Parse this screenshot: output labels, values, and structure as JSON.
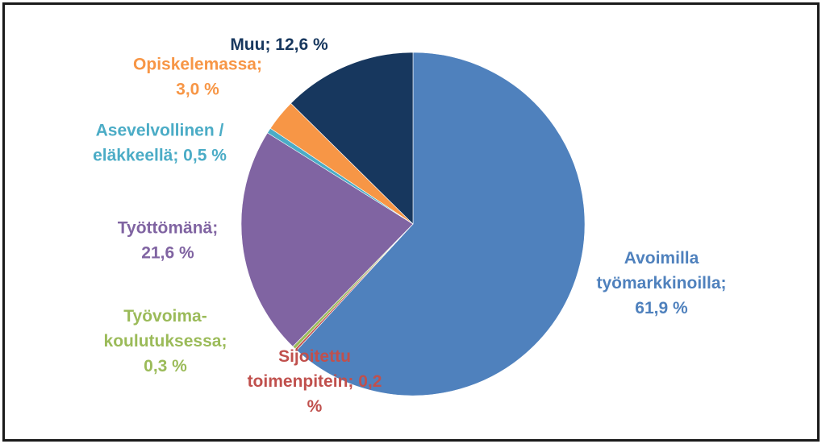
{
  "chart_data": {
    "type": "pie",
    "title": "",
    "start_angle_deg": 0,
    "direction": "clockwise",
    "slices": [
      {
        "name": "Avoimilla työmarkkinoilla",
        "value": 61.9,
        "color": "#4f81bd",
        "label_lines": [
          "Avoimilla",
          "työmarkkinoilla;",
          "61,9 %"
        ]
      },
      {
        "name": "Sijoitettu toimenpitein",
        "value": 0.2,
        "color": "#c0504d",
        "label_lines": [
          "Sijoitettu",
          "toimenpitein; 0,2",
          "%"
        ]
      },
      {
        "name": "Työvoimakoulutuksessa",
        "value": 0.3,
        "color": "#9bbb59",
        "label_lines": [
          "Työvoima-",
          "koulutuksessa;",
          "0,3 %"
        ]
      },
      {
        "name": "Työttömänä",
        "value": 21.6,
        "color": "#8064a2",
        "label_lines": [
          "Työttömänä;",
          "21,6 %"
        ]
      },
      {
        "name": "Asevelvollinen / eläkkeellä",
        "value": 0.5,
        "color": "#4bacc6",
        "label_lines": [
          "Asevelvollinen /",
          "eläkkeellä; 0,5 %"
        ]
      },
      {
        "name": "Opiskelemassa",
        "value": 3.0,
        "color": "#f79646",
        "label_lines": [
          "Opiskelemassa;",
          "3,0 %"
        ]
      },
      {
        "name": "Muu",
        "value": 12.6,
        "color": "#17375e",
        "label_lines": [
          "Muu; 12,6 %"
        ]
      }
    ]
  }
}
